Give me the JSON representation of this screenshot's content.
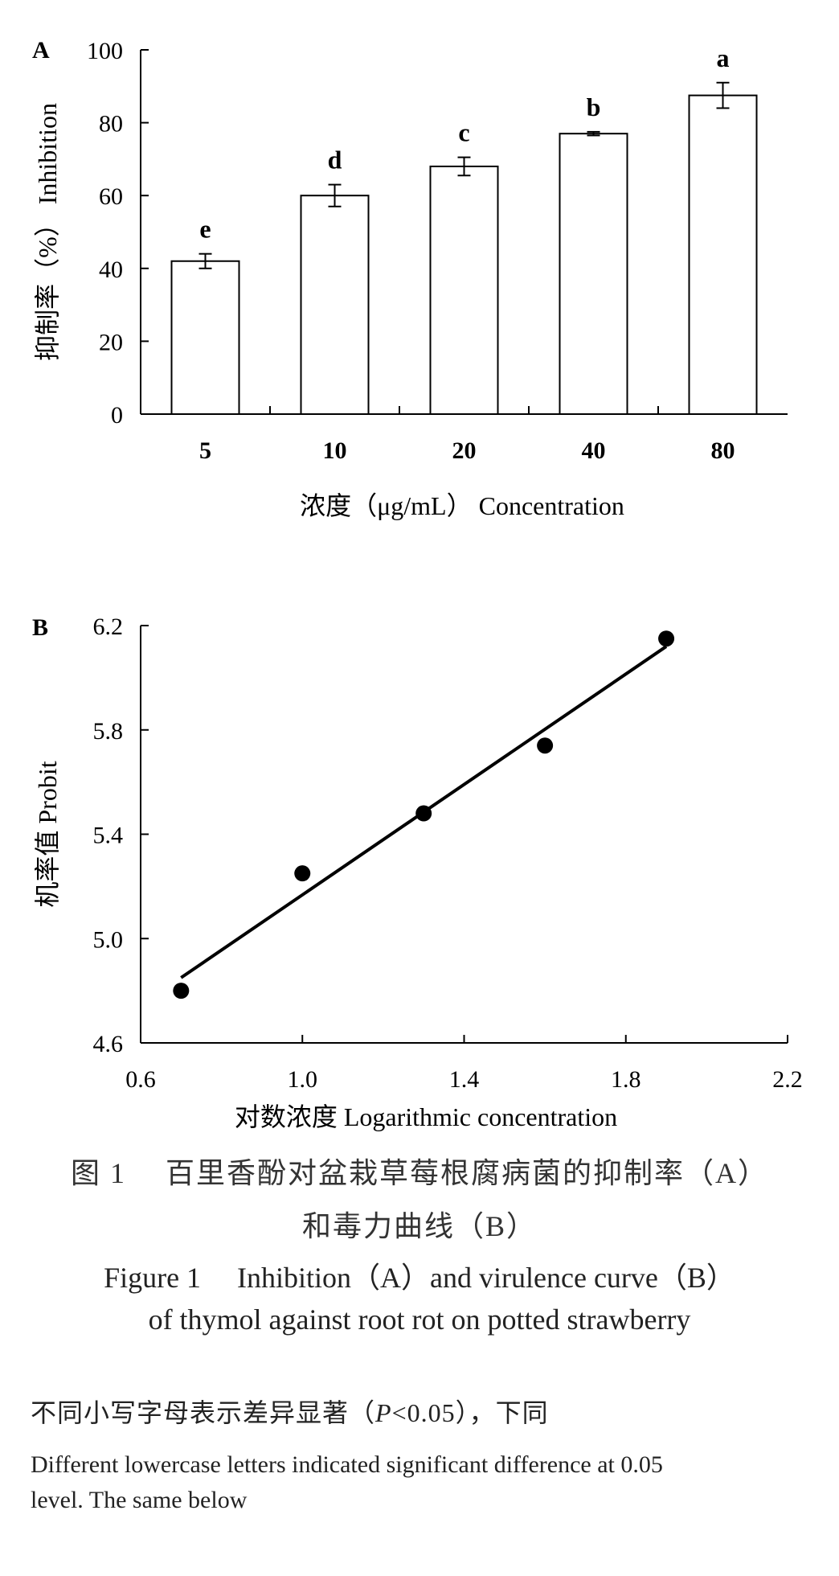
{
  "chart_data": [
    {
      "type": "bar",
      "panel_label": "A",
      "categories": [
        "5",
        "10",
        "20",
        "40",
        "80"
      ],
      "values": [
        42,
        60,
        68,
        77,
        87.5
      ],
      "errors": [
        2,
        3,
        2.5,
        0.5,
        3.5
      ],
      "significance_letters": [
        "e",
        "d",
        "c",
        "b",
        "a"
      ],
      "ylabel": "抑制率（%） Inhibition",
      "xlabel": "浓度（μg/mL） Concentration",
      "ylim": [
        0,
        100
      ],
      "yticks": [
        "0",
        "20",
        "40",
        "60",
        "80",
        "100"
      ],
      "grid": false
    },
    {
      "type": "scatter",
      "panel_label": "B",
      "points": [
        {
          "x": 0.7,
          "y": 4.8
        },
        {
          "x": 1.0,
          "y": 5.25
        },
        {
          "x": 1.3,
          "y": 5.48
        },
        {
          "x": 1.6,
          "y": 5.74
        },
        {
          "x": 1.9,
          "y": 6.15
        }
      ],
      "fit_line": {
        "x1": 0.7,
        "y1": 4.85,
        "x2": 1.9,
        "y2": 6.12
      },
      "ylabel": "机率值 Probit",
      "xlabel": "对数浓度 Logarithmic concentration",
      "xlim": [
        0.6,
        2.2
      ],
      "ylim": [
        4.6,
        6.2
      ],
      "xticks": [
        "0.6",
        "1.0",
        "1.4",
        "1.8",
        "2.2"
      ],
      "yticks": [
        "4.6",
        "5.0",
        "5.4",
        "5.8",
        "6.2"
      ],
      "grid": false
    }
  ],
  "caption": {
    "zh_line1": "图 1　 百里香酚对盆栽草莓根腐病菌的抑制率（A）",
    "zh_line2": "和毒力曲线（B）",
    "en_line1": "Figure 1　 Inhibition（A）and virulence curve（B）",
    "en_line2": "of thymol against root rot on potted strawberry"
  },
  "note": {
    "zh_prefix": "不同小写字母表示差异显著（",
    "zh_p": "P",
    "zh_suffix": "<0.05），下同",
    "en_line1": "Different lowercase letters indicated significant difference at 0.05",
    "en_line2": "level. The same below"
  }
}
